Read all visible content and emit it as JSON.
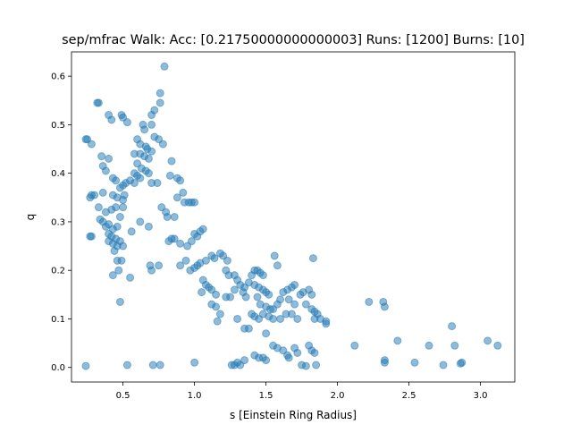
{
  "chart_data": {
    "type": "scatter",
    "title": "sep/mfrac Walk: Acc: [0.21750000000000003] Runs: [1200] Burns: [10]",
    "xlabel": "s [Einstein Ring Radius]",
    "ylabel": "q",
    "xlim": [
      0.14,
      3.24
    ],
    "ylim": [
      -0.03,
      0.65
    ],
    "xticks": [
      0.5,
      1.0,
      1.5,
      2.0,
      2.5,
      3.0
    ],
    "xtick_labels": [
      "0.5",
      "1.0",
      "1.5",
      "2.0",
      "2.5",
      "3.0"
    ],
    "yticks": [
      0.0,
      0.1,
      0.2,
      0.3,
      0.4,
      0.5,
      0.6
    ],
    "ytick_labels": [
      "0.0",
      "0.1",
      "0.2",
      "0.3",
      "0.4",
      "0.5",
      "0.6"
    ],
    "grid": false,
    "legend": "none",
    "marker_color": "#1f77b4",
    "marker_alpha": 0.5,
    "series": [
      {
        "points": [
          [
            0.24,
            0.47
          ],
          [
            0.25,
            0.47
          ],
          [
            0.28,
            0.46
          ],
          [
            0.32,
            0.545
          ],
          [
            0.33,
            0.545
          ],
          [
            0.4,
            0.52
          ],
          [
            0.42,
            0.51
          ],
          [
            0.49,
            0.52
          ],
          [
            0.5,
            0.515
          ],
          [
            0.53,
            0.505
          ],
          [
            0.64,
            0.5
          ],
          [
            0.65,
            0.49
          ],
          [
            0.7,
            0.52
          ],
          [
            0.7,
            0.5
          ],
          [
            0.76,
            0.565
          ],
          [
            0.76,
            0.545
          ],
          [
            0.79,
            0.62
          ],
          [
            0.72,
            0.53
          ],
          [
            0.6,
            0.47
          ],
          [
            0.62,
            0.46
          ],
          [
            0.66,
            0.455
          ],
          [
            0.67,
            0.45
          ],
          [
            0.7,
            0.445
          ],
          [
            0.58,
            0.44
          ],
          [
            0.62,
            0.44
          ],
          [
            0.65,
            0.435
          ],
          [
            0.68,
            0.43
          ],
          [
            0.6,
            0.42
          ],
          [
            0.63,
            0.41
          ],
          [
            0.66,
            0.405
          ],
          [
            0.68,
            0.4
          ],
          [
            0.58,
            0.4
          ],
          [
            0.6,
            0.395
          ],
          [
            0.62,
            0.39
          ],
          [
            0.55,
            0.385
          ],
          [
            0.58,
            0.38
          ],
          [
            0.52,
            0.38
          ],
          [
            0.5,
            0.375
          ],
          [
            0.48,
            0.37
          ],
          [
            0.45,
            0.385
          ],
          [
            0.43,
            0.39
          ],
          [
            0.51,
            0.355
          ],
          [
            0.5,
            0.345
          ],
          [
            0.5,
            0.33
          ],
          [
            0.46,
            0.35
          ],
          [
            0.43,
            0.355
          ],
          [
            0.36,
            0.36
          ],
          [
            0.38,
            0.405
          ],
          [
            0.4,
            0.43
          ],
          [
            0.35,
            0.435
          ],
          [
            0.36,
            0.415
          ],
          [
            0.28,
            0.355
          ],
          [
            0.27,
            0.35
          ],
          [
            0.3,
            0.355
          ],
          [
            0.33,
            0.33
          ],
          [
            0.38,
            0.32
          ],
          [
            0.42,
            0.325
          ],
          [
            0.45,
            0.33
          ],
          [
            0.48,
            0.31
          ],
          [
            0.34,
            0.305
          ],
          [
            0.36,
            0.3
          ],
          [
            0.4,
            0.295
          ],
          [
            0.38,
            0.29
          ],
          [
            0.43,
            0.285
          ],
          [
            0.46,
            0.29
          ],
          [
            0.4,
            0.275
          ],
          [
            0.42,
            0.27
          ],
          [
            0.45,
            0.265
          ],
          [
            0.48,
            0.26
          ],
          [
            0.4,
            0.26
          ],
          [
            0.43,
            0.255
          ],
          [
            0.46,
            0.25
          ],
          [
            0.44,
            0.24
          ],
          [
            0.5,
            0.25
          ],
          [
            0.27,
            0.27
          ],
          [
            0.28,
            0.27
          ],
          [
            0.46,
            0.22
          ],
          [
            0.49,
            0.22
          ],
          [
            0.47,
            0.2
          ],
          [
            0.43,
            0.19
          ],
          [
            0.55,
            0.185
          ],
          [
            0.48,
            0.135
          ],
          [
            0.56,
            0.28
          ],
          [
            0.62,
            0.3
          ],
          [
            0.68,
            0.29
          ],
          [
            0.69,
            0.21
          ],
          [
            0.7,
            0.2
          ],
          [
            0.75,
            0.21
          ],
          [
            0.72,
            0.475
          ],
          [
            0.75,
            0.47
          ],
          [
            0.78,
            0.46
          ],
          [
            0.7,
            0.38
          ],
          [
            0.74,
            0.38
          ],
          [
            0.77,
            0.33
          ],
          [
            0.8,
            0.32
          ],
          [
            0.81,
            0.31
          ],
          [
            0.83,
            0.395
          ],
          [
            0.84,
            0.425
          ],
          [
            0.86,
            0.31
          ],
          [
            0.88,
            0.35
          ],
          [
            0.88,
            0.39
          ],
          [
            0.9,
            0.385
          ],
          [
            0.92,
            0.36
          ],
          [
            0.93,
            0.34
          ],
          [
            0.96,
            0.34
          ],
          [
            0.98,
            0.34
          ],
          [
            1.0,
            0.34
          ],
          [
            0.84,
            0.265
          ],
          [
            0.86,
            0.265
          ],
          [
            0.82,
            0.26
          ],
          [
            0.9,
            0.255
          ],
          [
            0.95,
            0.25
          ],
          [
            0.98,
            0.26
          ],
          [
            1.0,
            0.275
          ],
          [
            1.02,
            0.27
          ],
          [
            1.04,
            0.28
          ],
          [
            1.06,
            0.285
          ],
          [
            0.9,
            0.21
          ],
          [
            0.94,
            0.22
          ],
          [
            0.97,
            0.2
          ],
          [
            1.0,
            0.205
          ],
          [
            1.02,
            0.21
          ],
          [
            1.04,
            0.215
          ],
          [
            1.08,
            0.22
          ],
          [
            1.12,
            0.23
          ],
          [
            1.14,
            0.225
          ],
          [
            1.18,
            0.235
          ],
          [
            1.2,
            0.23
          ],
          [
            1.23,
            0.22
          ],
          [
            1.06,
            0.18
          ],
          [
            1.08,
            0.17
          ],
          [
            1.05,
            0.155
          ],
          [
            1.1,
            0.165
          ],
          [
            1.12,
            0.16
          ],
          [
            1.15,
            0.15
          ],
          [
            1.12,
            0.13
          ],
          [
            1.15,
            0.125
          ],
          [
            1.18,
            0.11
          ],
          [
            1.16,
            0.095
          ],
          [
            1.22,
            0.145
          ],
          [
            1.25,
            0.145
          ],
          [
            1.22,
            0.2
          ],
          [
            1.24,
            0.19
          ],
          [
            1.28,
            0.19
          ],
          [
            1.3,
            0.18
          ],
          [
            1.28,
            0.16
          ],
          [
            1.32,
            0.17
          ],
          [
            1.35,
            0.165
          ],
          [
            1.38,
            0.175
          ],
          [
            1.4,
            0.19
          ],
          [
            1.42,
            0.2
          ],
          [
            1.44,
            0.2
          ],
          [
            1.46,
            0.195
          ],
          [
            1.48,
            0.19
          ],
          [
            1.42,
            0.17
          ],
          [
            1.45,
            0.165
          ],
          [
            1.48,
            0.16
          ],
          [
            1.5,
            0.155
          ],
          [
            1.52,
            0.15
          ],
          [
            1.44,
            0.145
          ],
          [
            1.46,
            0.13
          ],
          [
            1.5,
            0.125
          ],
          [
            1.53,
            0.12
          ],
          [
            1.55,
            0.12
          ],
          [
            1.58,
            0.13
          ],
          [
            1.6,
            0.14
          ],
          [
            1.62,
            0.155
          ],
          [
            1.65,
            0.16
          ],
          [
            1.68,
            0.165
          ],
          [
            1.7,
            0.17
          ],
          [
            1.66,
            0.14
          ],
          [
            1.7,
            0.13
          ],
          [
            1.74,
            0.15
          ],
          [
            1.76,
            0.155
          ],
          [
            1.8,
            0.16
          ],
          [
            1.82,
            0.15
          ],
          [
            1.78,
            0.13
          ],
          [
            1.82,
            0.12
          ],
          [
            1.84,
            0.115
          ],
          [
            1.86,
            0.11
          ],
          [
            1.88,
            0.1
          ],
          [
            1.84,
            0.1
          ],
          [
            1.92,
            0.095
          ],
          [
            1.92,
            0.09
          ],
          [
            1.56,
            0.23
          ],
          [
            1.58,
            0.21
          ],
          [
            1.34,
            0.155
          ],
          [
            1.36,
            0.145
          ],
          [
            1.4,
            0.11
          ],
          [
            1.42,
            0.105
          ],
          [
            1.45,
            0.1
          ],
          [
            1.48,
            0.11
          ],
          [
            1.52,
            0.105
          ],
          [
            1.55,
            0.1
          ],
          [
            1.6,
            0.1
          ],
          [
            1.64,
            0.11
          ],
          [
            1.68,
            0.11
          ],
          [
            1.72,
            0.1
          ],
          [
            1.3,
            0.1
          ],
          [
            1.35,
            0.08
          ],
          [
            1.38,
            0.08
          ],
          [
            1.5,
            0.07
          ],
          [
            1.83,
            0.225
          ],
          [
            2.22,
            0.135
          ],
          [
            2.32,
            0.135
          ],
          [
            2.33,
            0.125
          ],
          [
            2.42,
            0.055
          ],
          [
            2.12,
            0.045
          ],
          [
            2.64,
            0.045
          ],
          [
            2.8,
            0.085
          ],
          [
            2.82,
            0.045
          ],
          [
            3.05,
            0.055
          ],
          [
            3.12,
            0.045
          ],
          [
            1.55,
            0.045
          ],
          [
            1.58,
            0.04
          ],
          [
            1.62,
            0.035
          ],
          [
            1.65,
            0.025
          ],
          [
            1.66,
            0.02
          ],
          [
            1.7,
            0.04
          ],
          [
            1.72,
            0.03
          ],
          [
            1.8,
            0.045
          ],
          [
            1.82,
            0.035
          ],
          [
            1.84,
            0.03
          ],
          [
            1.42,
            0.025
          ],
          [
            1.45,
            0.02
          ],
          [
            1.48,
            0.02
          ],
          [
            1.5,
            0.015
          ],
          [
            1.35,
            0.015
          ],
          [
            1.3,
            0.01
          ],
          [
            1.32,
            0.005
          ],
          [
            1.26,
            0.005
          ],
          [
            1.28,
            0.005
          ],
          [
            1.0,
            0.01
          ],
          [
            0.76,
            0.005
          ],
          [
            0.71,
            0.005
          ],
          [
            0.53,
            0.005
          ],
          [
            0.24,
            0.003
          ],
          [
            1.75,
            0.005
          ],
          [
            1.78,
            0.003
          ],
          [
            1.85,
            0.005
          ],
          [
            2.33,
            0.015
          ],
          [
            2.33,
            0.01
          ],
          [
            2.54,
            0.01
          ],
          [
            2.74,
            0.005
          ],
          [
            2.86,
            0.008
          ],
          [
            2.87,
            0.01
          ]
        ]
      }
    ]
  }
}
